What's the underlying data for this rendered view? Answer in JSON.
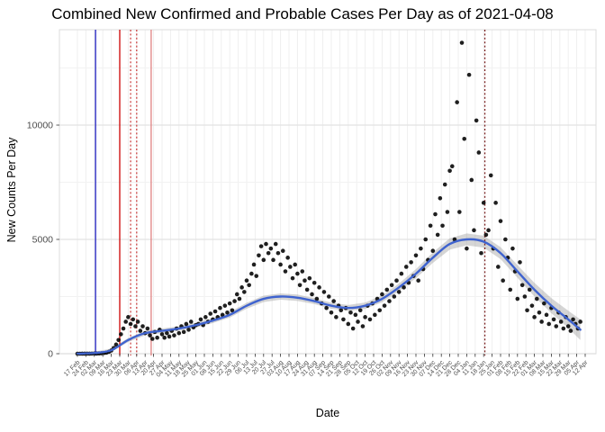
{
  "chart_data": {
    "type": "scatter",
    "title": "Combined New Confirmed and Probable Cases Per Day as of 2021-04-08",
    "xlabel": "Date",
    "ylabel": "New Counts Per Day",
    "x_start_date": "2020-02-17",
    "x_tick_interval_days": 7,
    "x_axis_span_days": 420,
    "ylim": [
      0,
      13600
    ],
    "y_ticks": [
      0,
      5000,
      10000
    ],
    "y_minor_ticks": [
      2500,
      7500,
      12500
    ],
    "grid": "on",
    "legend": "none",
    "point_color": "#000000",
    "x_tick_labels": [
      "17 Feb",
      "24 Feb",
      "02 Mar",
      "09 Mar",
      "16 Mar",
      "23 Mar",
      "30 Mar",
      "06 Apr",
      "13 Apr",
      "20 Apr",
      "27 Apr",
      "04 May",
      "11 May",
      "18 May",
      "25 May",
      "01 Jun",
      "08 Jun",
      "15 Jun",
      "22 Jun",
      "29 Jun",
      "06 Jul",
      "13 Jul",
      "20 Jul",
      "27 Jul",
      "03 Aug",
      "10 Aug",
      "17 Aug",
      "24 Aug",
      "31 Aug",
      "07 Sep",
      "14 Sep",
      "21 Sep",
      "28 Sep",
      "05 Oct",
      "12 Oct",
      "19 Oct",
      "26 Oct",
      "02 Nov",
      "09 Nov",
      "16 Nov",
      "23 Nov",
      "30 Nov",
      "07 Dec",
      "14 Dec",
      "21 Dec",
      "28 Dec",
      "04 Jan",
      "11 Jan",
      "18 Jan",
      "25 Jan",
      "01 Feb",
      "08 Feb",
      "15 Feb",
      "22 Feb",
      "01 Mar",
      "08 Mar",
      "15 Mar",
      "22 Mar",
      "29 Mar",
      "05 Apr",
      "12 Apr"
    ],
    "points_unit": "[day_offset_from_2020-02-17, new_counts_per_day]",
    "points": [
      [
        0,
        0
      ],
      [
        2,
        0
      ],
      [
        4,
        2
      ],
      [
        6,
        1
      ],
      [
        8,
        3
      ],
      [
        10,
        2
      ],
      [
        12,
        5
      ],
      [
        14,
        8
      ],
      [
        16,
        6
      ],
      [
        18,
        12
      ],
      [
        20,
        18
      ],
      [
        22,
        30
      ],
      [
        24,
        45
      ],
      [
        26,
        80
      ],
      [
        28,
        140
      ],
      [
        30,
        250
      ],
      [
        32,
        400
      ],
      [
        34,
        600
      ],
      [
        36,
        850
      ],
      [
        38,
        1100
      ],
      [
        40,
        1400
      ],
      [
        42,
        1600
      ],
      [
        44,
        1300
      ],
      [
        46,
        1500
      ],
      [
        48,
        1200
      ],
      [
        50,
        1400
      ],
      [
        52,
        1000
      ],
      [
        54,
        1200
      ],
      [
        56,
        900
      ],
      [
        58,
        1100
      ],
      [
        60,
        800
      ],
      [
        62,
        650
      ],
      [
        64,
        950
      ],
      [
        66,
        700
      ],
      [
        68,
        1050
      ],
      [
        70,
        850
      ],
      [
        72,
        700
      ],
      [
        74,
        900
      ],
      [
        76,
        750
      ],
      [
        78,
        1000
      ],
      [
        80,
        800
      ],
      [
        82,
        1100
      ],
      [
        84,
        900
      ],
      [
        86,
        1200
      ],
      [
        88,
        950
      ],
      [
        90,
        1300
      ],
      [
        92,
        1050
      ],
      [
        94,
        1400
      ],
      [
        96,
        1150
      ],
      [
        98,
        1250
      ],
      [
        100,
        1300
      ],
      [
        102,
        1500
      ],
      [
        104,
        1250
      ],
      [
        106,
        1600
      ],
      [
        108,
        1400
      ],
      [
        110,
        1750
      ],
      [
        112,
        1500
      ],
      [
        114,
        1850
      ],
      [
        116,
        1600
      ],
      [
        118,
        2000
      ],
      [
        120,
        1700
      ],
      [
        122,
        2100
      ],
      [
        124,
        1800
      ],
      [
        126,
        2200
      ],
      [
        128,
        1900
      ],
      [
        130,
        2300
      ],
      [
        132,
        2600
      ],
      [
        134,
        2400
      ],
      [
        136,
        2900
      ],
      [
        138,
        2700
      ],
      [
        140,
        3200
      ],
      [
        142,
        3000
      ],
      [
        144,
        3500
      ],
      [
        146,
        3900
      ],
      [
        148,
        3400
      ],
      [
        150,
        4300
      ],
      [
        152,
        4700
      ],
      [
        154,
        4100
      ],
      [
        156,
        4800
      ],
      [
        158,
        4400
      ],
      [
        160,
        4600
      ],
      [
        162,
        4100
      ],
      [
        164,
        4800
      ],
      [
        166,
        4400
      ],
      [
        168,
        3900
      ],
      [
        170,
        4500
      ],
      [
        172,
        3600
      ],
      [
        174,
        4200
      ],
      [
        176,
        3800
      ],
      [
        178,
        3300
      ],
      [
        180,
        3900
      ],
      [
        182,
        3500
      ],
      [
        184,
        3000
      ],
      [
        186,
        3600
      ],
      [
        188,
        3200
      ],
      [
        190,
        2800
      ],
      [
        192,
        3300
      ],
      [
        194,
        2600
      ],
      [
        196,
        3100
      ],
      [
        198,
        2400
      ],
      [
        200,
        2900
      ],
      [
        202,
        2200
      ],
      [
        204,
        2700
      ],
      [
        206,
        2000
      ],
      [
        208,
        2500
      ],
      [
        210,
        1800
      ],
      [
        212,
        2300
      ],
      [
        214,
        1600
      ],
      [
        216,
        2100
      ],
      [
        218,
        1900
      ],
      [
        220,
        1500
      ],
      [
        222,
        2000
      ],
      [
        224,
        1300
      ],
      [
        226,
        1800
      ],
      [
        228,
        1100
      ],
      [
        230,
        1700
      ],
      [
        232,
        1400
      ],
      [
        234,
        1900
      ],
      [
        236,
        1200
      ],
      [
        238,
        1600
      ],
      [
        240,
        2100
      ],
      [
        242,
        1500
      ],
      [
        244,
        2200
      ],
      [
        246,
        1700
      ],
      [
        248,
        2400
      ],
      [
        250,
        1900
      ],
      [
        252,
        2600
      ],
      [
        254,
        2100
      ],
      [
        256,
        2800
      ],
      [
        258,
        2300
      ],
      [
        260,
        3000
      ],
      [
        262,
        2500
      ],
      [
        264,
        3200
      ],
      [
        266,
        2700
      ],
      [
        268,
        3500
      ],
      [
        270,
        2900
      ],
      [
        272,
        3800
      ],
      [
        274,
        3100
      ],
      [
        276,
        4000
      ],
      [
        278,
        3400
      ],
      [
        280,
        4300
      ],
      [
        282,
        3200
      ],
      [
        284,
        4600
      ],
      [
        286,
        3700
      ],
      [
        288,
        5000
      ],
      [
        290,
        4100
      ],
      [
        292,
        5600
      ],
      [
        294,
        4500
      ],
      [
        296,
        6100
      ],
      [
        298,
        5200
      ],
      [
        300,
        6800
      ],
      [
        302,
        5600
      ],
      [
        304,
        7400
      ],
      [
        306,
        6200
      ],
      [
        308,
        8000
      ],
      [
        310,
        8200
      ],
      [
        312,
        5000
      ],
      [
        314,
        11000
      ],
      [
        316,
        6200
      ],
      [
        318,
        13600
      ],
      [
        320,
        9400
      ],
      [
        322,
        4600
      ],
      [
        324,
        12200
      ],
      [
        326,
        7600
      ],
      [
        328,
        5400
      ],
      [
        330,
        10200
      ],
      [
        332,
        8800
      ],
      [
        334,
        4400
      ],
      [
        336,
        6600
      ],
      [
        338,
        5200
      ],
      [
        340,
        5400
      ],
      [
        342,
        7800
      ],
      [
        344,
        4600
      ],
      [
        346,
        6600
      ],
      [
        348,
        3800
      ],
      [
        350,
        5800
      ],
      [
        352,
        3200
      ],
      [
        354,
        5000
      ],
      [
        356,
        4200
      ],
      [
        358,
        2800
      ],
      [
        360,
        4600
      ],
      [
        362,
        3600
      ],
      [
        364,
        2400
      ],
      [
        366,
        4000
      ],
      [
        368,
        3000
      ],
      [
        370,
        2500
      ],
      [
        372,
        1900
      ],
      [
        374,
        2800
      ],
      [
        376,
        2100
      ],
      [
        378,
        1600
      ],
      [
        380,
        2400
      ],
      [
        382,
        1800
      ],
      [
        384,
        1400
      ],
      [
        386,
        2200
      ],
      [
        388,
        1700
      ],
      [
        390,
        1300
      ],
      [
        392,
        2000
      ],
      [
        394,
        1500
      ],
      [
        396,
        1200
      ],
      [
        398,
        1800
      ],
      [
        400,
        1400
      ],
      [
        402,
        1100
      ],
      [
        404,
        1600
      ],
      [
        406,
        1200
      ],
      [
        408,
        1000
      ],
      [
        410,
        1500
      ],
      [
        412,
        1300
      ],
      [
        414,
        1100
      ],
      [
        416,
        1400
      ]
    ],
    "trend": {
      "description": "loess smooth with confidence band",
      "color": "#3f63cf",
      "ci_color": "#9a9a9a",
      "days": [
        0,
        14,
        28,
        42,
        56,
        70,
        84,
        98,
        112,
        126,
        140,
        154,
        168,
        182,
        196,
        210,
        224,
        238,
        252,
        266,
        280,
        294,
        308,
        322,
        336,
        350,
        364,
        378,
        392,
        406,
        416
      ],
      "values": [
        0,
        30,
        150,
        600,
        900,
        1000,
        1100,
        1250,
        1450,
        1700,
        2100,
        2400,
        2500,
        2450,
        2300,
        2100,
        2000,
        2100,
        2400,
        2900,
        3500,
        4200,
        4800,
        5000,
        4900,
        4400,
        3600,
        2800,
        2100,
        1500,
        1050
      ],
      "ci_width": [
        60,
        60,
        70,
        90,
        100,
        100,
        100,
        110,
        110,
        120,
        130,
        140,
        140,
        140,
        130,
        130,
        130,
        140,
        150,
        170,
        200,
        230,
        250,
        260,
        260,
        260,
        280,
        300,
        330,
        380,
        450
      ]
    },
    "vlines": [
      {
        "day": 15,
        "approx_date": "2020-03-03",
        "color": "#2020c0",
        "style": "solid"
      },
      {
        "day": 35,
        "approx_date": "2020-03-23",
        "color": "#cc0000",
        "style": "solid"
      },
      {
        "day": 44,
        "approx_date": "2020-04-01",
        "color": "#cc4444",
        "style": "dotted"
      },
      {
        "day": 49,
        "approx_date": "2020-04-06",
        "color": "#cc4444",
        "style": "dotted"
      },
      {
        "day": 61,
        "approx_date": "2020-04-18",
        "color": "#e08080",
        "style": "solid"
      },
      {
        "day": 337,
        "approx_date": "2021-01-19",
        "color": "#7a2020",
        "style": "dotted"
      }
    ]
  }
}
